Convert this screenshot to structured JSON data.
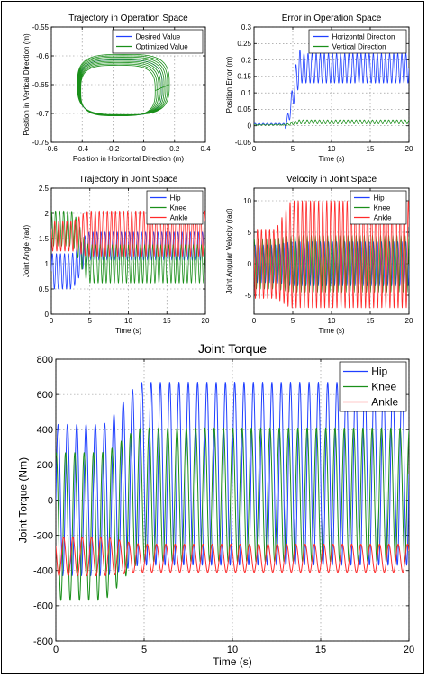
{
  "colors": {
    "blue": "#1f3fff",
    "green": "#1a8f1a",
    "red": "#ff2a2a",
    "axis": "#000000",
    "grid": "#888888"
  },
  "chart_data": [
    {
      "id": "op-trajectory",
      "type": "line",
      "title": "Trajectory in Operation Space",
      "xlabel": "Position in Horizontal Direction (m)",
      "ylabel": "Position in Vertical Direction (m)",
      "xlim": [
        -0.6,
        0.4
      ],
      "ylim": [
        -0.75,
        -0.55
      ],
      "xticks": [
        -0.6,
        -0.4,
        -0.2,
        0,
        0.2,
        0.4
      ],
      "yticks": [
        -0.75,
        -0.7,
        -0.65,
        -0.6,
        -0.55
      ],
      "grid": true,
      "legend": "top-right",
      "series": [
        {
          "name": "Desired Value",
          "color": "blue",
          "shape": "loop",
          "loops": 1
        },
        {
          "name": "Optimized Value",
          "color": "green",
          "shape": "loop",
          "loops": 9
        }
      ],
      "loop_params": {
        "cx": -0.15,
        "cy": -0.655,
        "rx": 0.27,
        "ry": 0.048,
        "spread": 0.035
      }
    },
    {
      "id": "op-error",
      "type": "line",
      "title": "Error in Operation Space",
      "xlabel": "Time (s)",
      "ylabel": "Position Error (m)",
      "xlim": [
        0,
        20
      ],
      "ylim": [
        -0.05,
        0.3
      ],
      "xticks": [
        0,
        5,
        10,
        15,
        20
      ],
      "yticks": [
        -0.05,
        0,
        0.05,
        0.1,
        0.15,
        0.2,
        0.25,
        0.3
      ],
      "grid": true,
      "legend": "top-right",
      "series": [
        {
          "name": "Horizontal Direction",
          "color": "blue",
          "base": 0.175,
          "amp": 0.045,
          "freq": 1.9,
          "onset": 4.0,
          "rise": 6.0,
          "early": 0.005
        },
        {
          "name": "Vertical Direction",
          "color": "green",
          "base": 0.012,
          "amp": 0.006,
          "freq": 1.9,
          "onset": 4.0,
          "rise": 6.0,
          "early": 0.003
        }
      ]
    },
    {
      "id": "joint-trajectory",
      "type": "line",
      "title": "Trajectory in Joint Space",
      "xlabel": "Time (s)",
      "ylabel": "Joint Angle (rad)",
      "xlim": [
        0,
        20
      ],
      "ylim": [
        0,
        2.5
      ],
      "xticks": [
        0,
        5,
        10,
        15,
        20
      ],
      "yticks": [
        0,
        0.5,
        1,
        1.5,
        2,
        2.5
      ],
      "grid": true,
      "legend": "top-right",
      "series": [
        {
          "name": "Hip",
          "color": "blue",
          "base": 1.35,
          "amp": 0.28,
          "freq": 1.9,
          "early_base": 0.85,
          "early_amp": 0.35
        },
        {
          "name": "Knee",
          "color": "green",
          "base": 1.0,
          "amp": 0.38,
          "freq": 1.9,
          "early_base": 1.7,
          "early_amp": 0.35
        },
        {
          "name": "Ankle",
          "color": "red",
          "base": 1.6,
          "amp": 0.45,
          "freq": 1.9,
          "early_base": 1.55,
          "early_amp": 0.3
        }
      ]
    },
    {
      "id": "joint-velocity",
      "type": "line",
      "title": "Velocity in Joint Space",
      "xlabel": "Time (s)",
      "ylabel": "Joint Angular Velocity (rad)",
      "xlim": [
        0,
        20
      ],
      "ylim": [
        -8,
        12
      ],
      "xticks": [
        0,
        5,
        10,
        15,
        20
      ],
      "yticks": [
        -5,
        0,
        5,
        10
      ],
      "grid": true,
      "legend": "top-right",
      "series": [
        {
          "name": "Hip",
          "color": "blue",
          "base": 0,
          "amp": 3.5,
          "freq": 1.9,
          "early_base": 0,
          "early_amp": 3.0
        },
        {
          "name": "Knee",
          "color": "green",
          "base": 0,
          "amp": 4.5,
          "freq": 1.9,
          "early_base": 0,
          "early_amp": 4.0
        },
        {
          "name": "Ankle",
          "color": "red",
          "base": 1.5,
          "amp": 8.5,
          "freq": 1.9,
          "early_base": 0,
          "early_amp": 5.5
        }
      ]
    },
    {
      "id": "joint-torque",
      "type": "line",
      "title": "Joint Torque",
      "xlabel": "Time (s)",
      "ylabel": "Joint Torque (Nm)",
      "xlim": [
        0,
        20
      ],
      "ylim": [
        -800,
        800
      ],
      "xticks": [
        0,
        5,
        10,
        15,
        20
      ],
      "yticks": [
        -800,
        -600,
        -400,
        -200,
        0,
        200,
        400,
        600,
        800
      ],
      "grid": true,
      "legend": "top-right",
      "series": [
        {
          "name": "Hip",
          "color": "blue",
          "base": 150,
          "amp": 520,
          "freq": 1.9,
          "early_base": 0,
          "early_amp": 430
        },
        {
          "name": "Knee",
          "color": "green",
          "base": 30,
          "amp": 380,
          "freq": 1.9,
          "early_base": -150,
          "early_amp": 420
        },
        {
          "name": "Ankle",
          "color": "red",
          "base": -330,
          "amp": 80,
          "freq": 1.9,
          "early_base": -320,
          "early_amp": 110
        }
      ]
    }
  ]
}
